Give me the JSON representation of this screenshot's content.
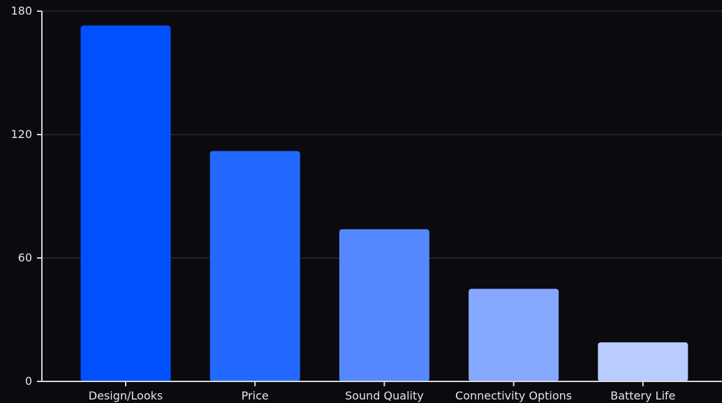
{
  "chart_data": {
    "type": "bar",
    "title": "",
    "xlabel": "",
    "ylabel": "",
    "categories": [
      "Design/Looks",
      "Price",
      "Sound Quality",
      "Connectivity Options",
      "Battery Life"
    ],
    "values": [
      173,
      112,
      74,
      45,
      19
    ],
    "colors": [
      "#0050ff",
      "#2469ff",
      "#5588ff",
      "#86a8ff",
      "#b8ccff"
    ],
    "ylim": [
      0,
      180
    ],
    "yticks": [
      0,
      60,
      120,
      180
    ],
    "ytick_labels": [
      "0",
      "60",
      "120",
      "180"
    ],
    "grid": true,
    "legend": "none"
  }
}
